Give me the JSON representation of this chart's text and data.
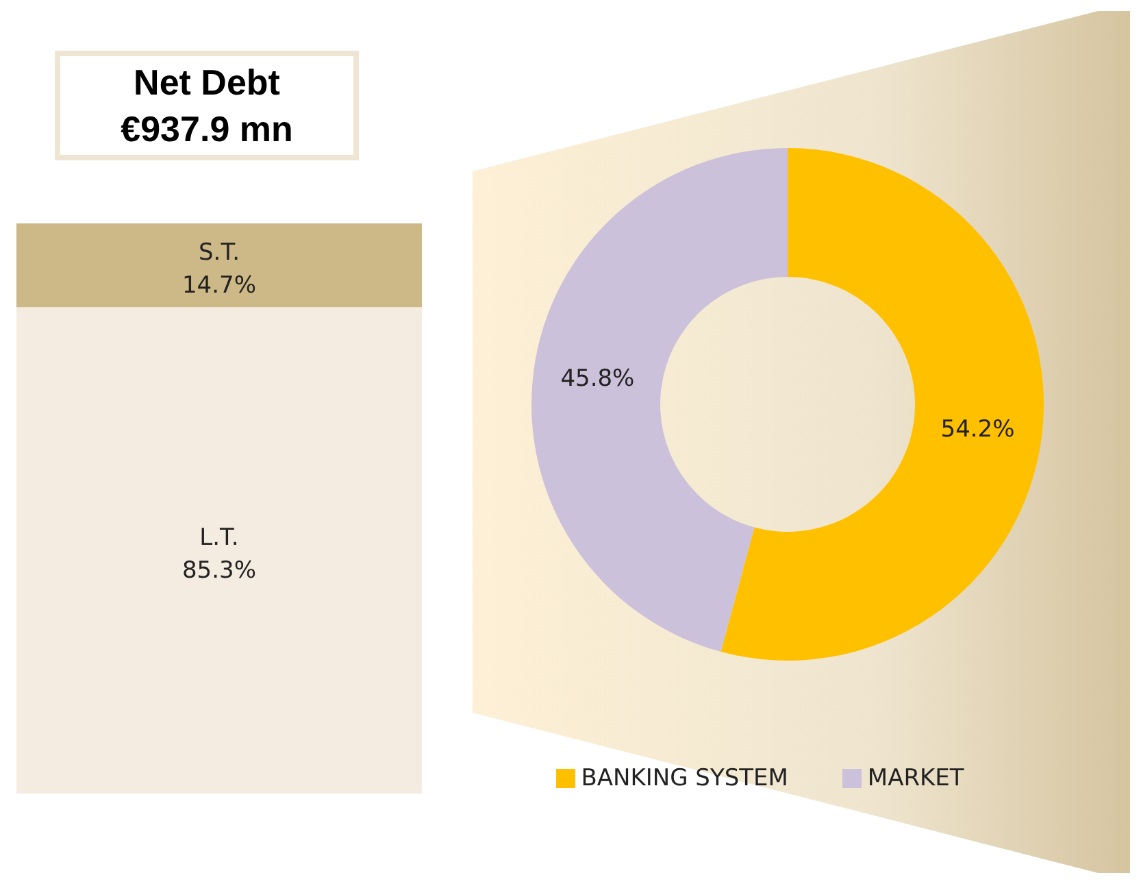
{
  "chart_data": [
    {
      "type": "bar",
      "stacked": true,
      "title": "Net Debt\n€937.9 mn",
      "categories": [
        null
      ],
      "series": [
        {
          "name": "L.T.",
          "color": "#f4ece0",
          "values": [
            85.3
          ],
          "value_labels": [
            "85.3%"
          ]
        },
        {
          "name": "S.T.",
          "color": "#cdb887",
          "values": [
            14.7
          ],
          "value_labels": [
            "14.7%"
          ]
        }
      ]
    },
    {
      "type": "donut",
      "categories": [
        "BANKING SYSTEM",
        "MARKET"
      ],
      "values": [
        54.2,
        45.8
      ],
      "colors": [
        "#ffc000",
        "#ccc1da"
      ],
      "value_labels": [
        "54.2%",
        "45.8%"
      ],
      "legend": "bottom"
    }
  ]
}
